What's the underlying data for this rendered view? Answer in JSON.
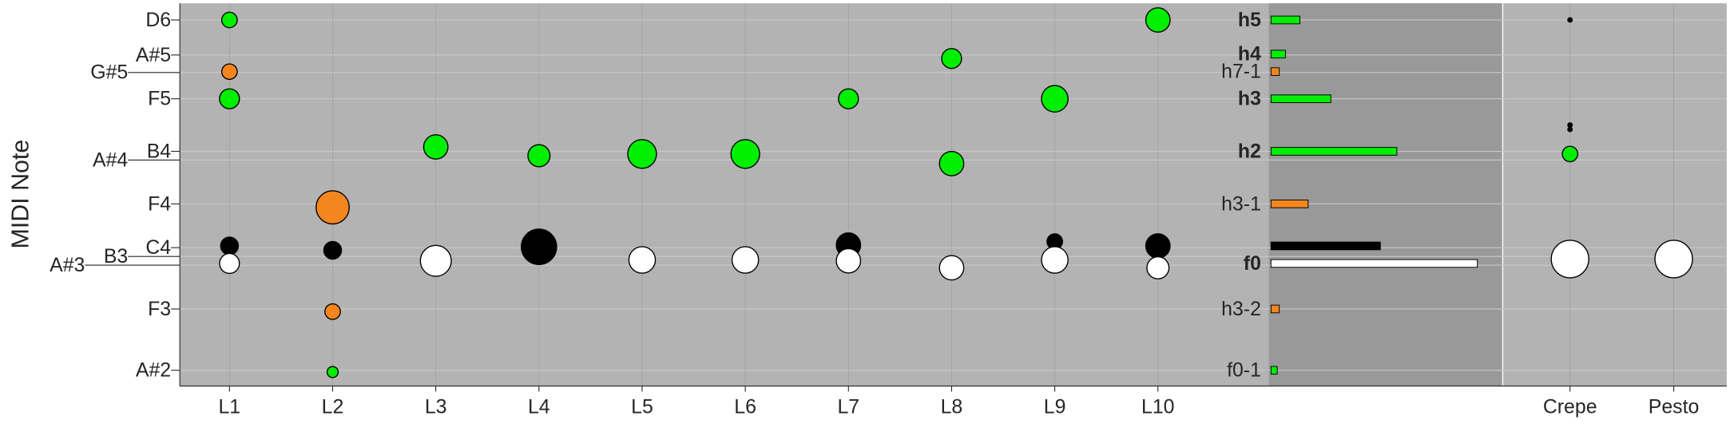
{
  "chart_data": {
    "type": "bubble",
    "y_label": "MIDI Note",
    "ylim": [
      44.2,
      87.9
    ],
    "yticks": [
      {
        "value": 86,
        "label": "D6"
      },
      {
        "value": 82,
        "label": "A#5"
      },
      {
        "value": 80,
        "label": "G#5"
      },
      {
        "value": 77,
        "label": "F5"
      },
      {
        "value": 71,
        "label": "B4"
      },
      {
        "value": 70,
        "label": "A#4"
      },
      {
        "value": 65,
        "label": "F4"
      },
      {
        "value": 60,
        "label": "C4"
      },
      {
        "value": 59,
        "label": "B3"
      },
      {
        "value": 58,
        "label": "A#3"
      },
      {
        "value": 53,
        "label": "F3"
      },
      {
        "value": 46,
        "label": "A#2"
      }
    ],
    "grid": true,
    "categories": [
      "L1",
      "L2",
      "L3",
      "L4",
      "L5",
      "L6",
      "L7",
      "L8",
      "L9",
      "L10",
      "Crepe",
      "Pesto"
    ],
    "series": [
      {
        "color": "#00ee00",
        "x": [
          "L1",
          "L1",
          "L2",
          "L3",
          "L4",
          "L5",
          "L6",
          "L7",
          "L8",
          "L8",
          "L9",
          "L10",
          "Crepe"
        ],
        "values": [
          86,
          77,
          45.8,
          71.5,
          70.5,
          70.7,
          70.7,
          77,
          81.6,
          69.6,
          77,
          86,
          70.7
        ],
        "sizes": [
          7,
          9,
          5,
          11,
          10,
          13,
          13,
          9,
          9,
          11,
          12,
          11,
          7
        ]
      },
      {
        "color": "#f5861f",
        "x": [
          "L1",
          "L2",
          "L2"
        ],
        "values": [
          80.1,
          64.6,
          52.7
        ],
        "sizes": [
          7,
          15,
          7
        ]
      },
      {
        "color": "#000000",
        "x": [
          "L1",
          "L2",
          "L4",
          "L7",
          "L9",
          "L10",
          "Crepe",
          "Crepe",
          "Crepe",
          "Pesto"
        ],
        "values": [
          60.2,
          59.7,
          60.1,
          60.3,
          60.7,
          60.2,
          86,
          74,
          73.5,
          58.7
        ],
        "sizes": [
          8,
          8,
          16,
          11,
          7,
          11,
          2,
          2,
          2,
          0.8
        ]
      },
      {
        "color": "#ffffff",
        "x": [
          "L1",
          "L3",
          "L5",
          "L6",
          "L7",
          "L8",
          "L9",
          "L10",
          "Crepe",
          "Pesto"
        ],
        "values": [
          58.2,
          58.5,
          58.6,
          58.6,
          58.5,
          57.7,
          58.6,
          57.7,
          58.7,
          58.7
        ],
        "sizes": [
          9,
          14,
          12,
          12,
          11,
          11,
          12,
          10,
          17,
          17
        ]
      }
    ],
    "bars": {
      "labels": [
        "h5",
        "h4",
        "h7-1",
        "h3",
        "h2",
        "h3-1",
        null,
        "f0",
        "h3-2",
        "f0-1"
      ],
      "bold": [
        true,
        true,
        false,
        true,
        true,
        false,
        false,
        true,
        false,
        false
      ],
      "positions": [
        86,
        82.1,
        80.1,
        77,
        71,
        65,
        60.2,
        58.2,
        53,
        46
      ],
      "values": [
        0.14,
        0.07,
        0.04,
        0.29,
        0.61,
        0.18,
        0.53,
        1.0,
        0.04,
        0.03
      ],
      "colors": [
        "#00ee00",
        "#00ee00",
        "#f5861f",
        "#00ee00",
        "#00ee00",
        "#f5861f",
        "#000000",
        "#ffffff",
        "#f5861f",
        "#00ee00"
      ]
    }
  }
}
